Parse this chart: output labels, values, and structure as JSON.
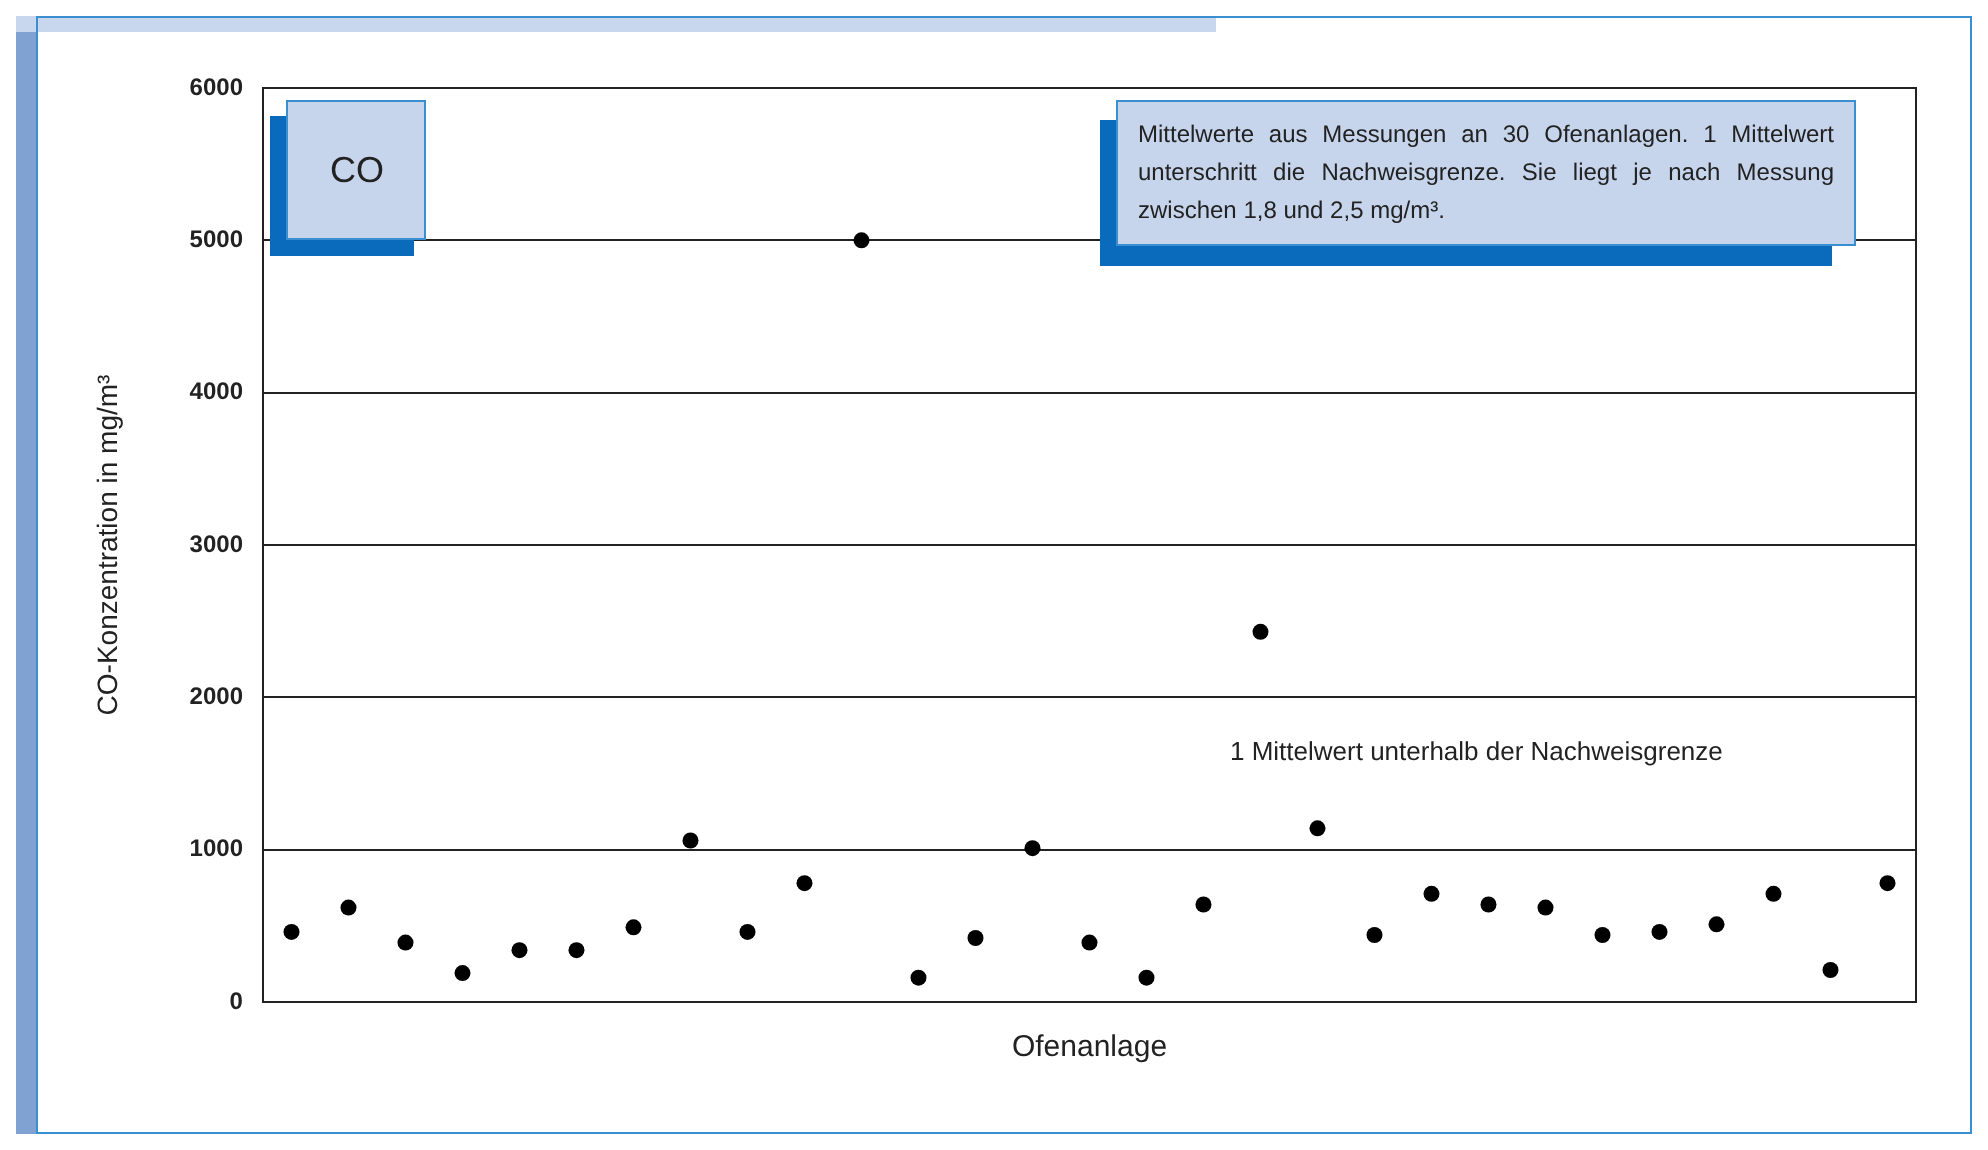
{
  "chart_data": {
    "type": "scatter",
    "title": "CO",
    "xlabel": "Ofenanlage",
    "ylabel": "CO-Konzentration in mg/m³",
    "categories": [
      null,
      null,
      null,
      null,
      null,
      null,
      null,
      null,
      null,
      null,
      null,
      null,
      null,
      null,
      null,
      null,
      null,
      null,
      null,
      null,
      null,
      null,
      null,
      null,
      null,
      null,
      null,
      null,
      null
    ],
    "values": [
      460,
      620,
      390,
      190,
      340,
      340,
      490,
      1060,
      460,
      780,
      5000,
      160,
      420,
      1010,
      390,
      160,
      640,
      2430,
      1140,
      440,
      710,
      640,
      620,
      440,
      460,
      510,
      710,
      210,
      780
    ],
    "color": "#000000",
    "marker": "circle",
    "ylim": [
      0,
      6000
    ],
    "yticks": [
      0,
      1000,
      2000,
      3000,
      4000,
      5000,
      6000
    ],
    "grid": "y",
    "legend": false,
    "annotations": [
      "Mittelwerte aus Messungen an 30 Ofenanlagen. 1 Mittelwert unterschritt die Nachweisgrenze. Sie liegt je nach Messung zwischen 1,8 und 2,5 mg/m³.",
      "1 Mittelwert unterhalb der Nachweisgrenze"
    ]
  }
}
